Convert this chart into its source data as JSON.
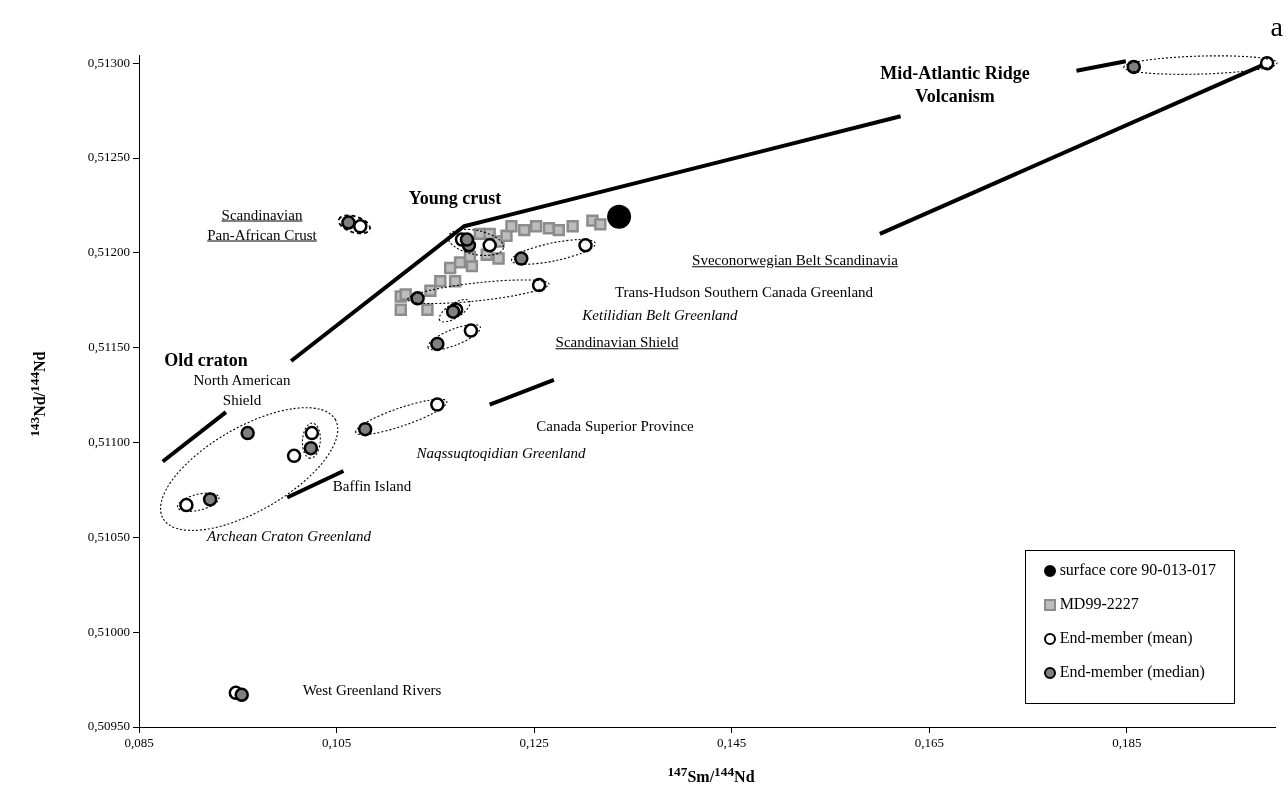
{
  "chart_data": {
    "type": "scatter",
    "title": "a",
    "xlabel": "$^{147}$Sm/$^{144}$Nd",
    "ylabel": "$^{143}$Nd/$^{144}$Nd",
    "xlim": [
      0.085,
      0.2
    ],
    "ylim": [
      0.5095,
      0.51304
    ],
    "xticks": [
      {
        "value": 0.085,
        "label": "0,085"
      },
      {
        "value": 0.105,
        "label": "0,105"
      },
      {
        "value": 0.125,
        "label": "0,125"
      },
      {
        "value": 0.145,
        "label": "0,145"
      },
      {
        "value": 0.165,
        "label": "0,165"
      },
      {
        "value": 0.185,
        "label": "0,185"
      }
    ],
    "yticks": [
      {
        "value": 0.5095,
        "label": "0,50950"
      },
      {
        "value": 0.51,
        "label": "0,51000"
      },
      {
        "value": 0.5105,
        "label": "0,51050"
      },
      {
        "value": 0.511,
        "label": "0,51100"
      },
      {
        "value": 0.5115,
        "label": "0,51150"
      },
      {
        "value": 0.512,
        "label": "0,51200"
      },
      {
        "value": 0.5125,
        "label": "0,51250"
      },
      {
        "value": 0.513,
        "label": "0,51300"
      }
    ],
    "legend": "bottom right",
    "marker": "circle",
    "series": [
      {
        "type": "line",
        "marker": "none",
        "line_style": "solid",
        "color": "#000000",
        "x": [
          0.0874,
          0.0938,
          0.0971,
          0.1004,
          0.1179,
          0.1621,
          0.171,
          0.1799,
          0.1849
        ],
        "values": [
          0.5109,
          0.51116,
          null,
          0.51143,
          0.51214,
          0.51272,
          null,
          0.51296,
          0.51301
        ]
      },
      {
        "type": "line",
        "marker": "none",
        "line_style": "solid",
        "color": "#000000",
        "x": [
          0.1,
          0.1057,
          0.113,
          0.1205,
          0.127,
          0.14,
          0.16,
          0.1992
        ],
        "values": [
          0.51071,
          0.51085,
          null,
          0.5112,
          0.51133,
          null,
          0.5121,
          0.513
        ]
      },
      {
        "name": "surface core 90-013-017",
        "color": "#000000",
        "x": [
          0.1336
        ],
        "values": [
          0.51219
        ]
      },
      {
        "name": "MD99-2227",
        "marker": "square",
        "color": "#bdbdbd",
        "x": [
          0.1115,
          0.1115,
          0.112,
          0.1142,
          0.1145,
          0.1155,
          0.1165,
          0.117,
          0.1175,
          0.1187,
          0.1185,
          0.1195,
          0.1205,
          0.1202,
          0.1214,
          0.1214,
          0.1222,
          0.1227,
          0.124,
          0.1252,
          0.1265,
          0.1275,
          0.1289,
          0.1309,
          0.1317
        ],
        "values": [
          0.51177,
          0.5117,
          0.51178,
          0.5117,
          0.5118,
          0.51185,
          0.51192,
          0.51185,
          0.51195,
          0.51193,
          0.51198,
          0.5121,
          0.5121,
          0.51199,
          0.51197,
          0.51206,
          0.51209,
          0.51214,
          0.51212,
          0.51214,
          0.51213,
          0.51212,
          0.51214,
          0.51217,
          0.51215
        ]
      },
      {
        "name": "End-member (mean)",
        "color": "#ffffff",
        "x": [
          0.1074,
          0.1302,
          0.1255,
          0.1171,
          0.1186,
          0.1152,
          0.0898,
          0.1007,
          0.1025,
          0.0948,
          0.1992,
          0.1177,
          0.1205
        ],
        "values": [
          0.51214,
          0.51204,
          0.51183,
          0.5117,
          0.51159,
          0.5112,
          0.51067,
          0.51093,
          0.51105,
          0.50968,
          0.513,
          0.51207,
          0.51204
        ]
      },
      {
        "name": "End-member (median)",
        "color": "#808080",
        "x": [
          0.1062,
          0.1237,
          0.1132,
          0.1168,
          0.1152,
          0.1079,
          0.0922,
          0.096,
          0.1024,
          0.0954,
          0.1857,
          0.1184,
          0.1182
        ],
        "values": [
          0.51216,
          0.51197,
          0.51176,
          0.51169,
          0.51152,
          0.51107,
          0.5107,
          0.51105,
          0.51097,
          0.50967,
          0.51298,
          0.51204,
          0.51207
        ]
      }
    ],
    "annotations": [
      "Mid-Atlantic Ridge\nVolcanism",
      "Young crust",
      "Scandinavian\nPan-African Crust",
      "Sveconorwegian Belt Scandinavia",
      "Trans-Hudson Southern Canada Greenland",
      "Ketilidian Belt Greenland",
      "Scandinavian Shield",
      "Old craton",
      "North American\nShield",
      "Canada Superior Province",
      "Naqssuqtoqidian Greenland",
      "Baffin Island",
      "Archean Craton Greenland",
      "West Greenland Rivers"
    ]
  }
}
